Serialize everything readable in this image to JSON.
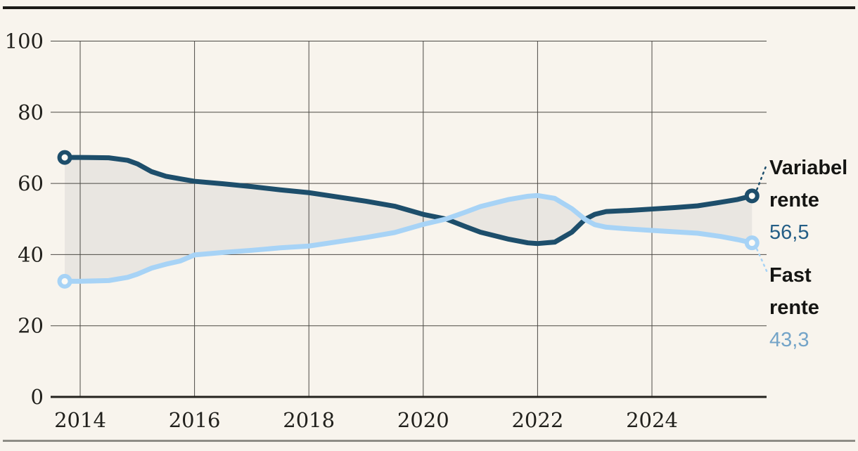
{
  "chart_data": {
    "type": "line",
    "title": "",
    "xlabel": "",
    "ylabel": "",
    "xlim": [
      2013.6,
      2025.95
    ],
    "ylim": [
      0,
      100
    ],
    "grid": true,
    "legend_position": "right",
    "x_ticks": [
      2014,
      2016,
      2018,
      2020,
      2022,
      2024
    ],
    "y_ticks": [
      0,
      20,
      40,
      60,
      80,
      100
    ],
    "fill_between_color": "#e9e6e1",
    "x": [
      2013.73,
      2014.0,
      2014.5,
      2014.83,
      2015.0,
      2015.25,
      2015.5,
      2015.75,
      2016.0,
      2016.5,
      2017.0,
      2017.5,
      2018.0,
      2018.5,
      2019.0,
      2019.5,
      2020.0,
      2020.4,
      2020.75,
      2021.0,
      2021.5,
      2021.83,
      2022.0,
      2022.3,
      2022.6,
      2022.83,
      2023.0,
      2023.2,
      2023.6,
      2024.0,
      2024.4,
      2024.8,
      2025.2,
      2025.5,
      2025.75
    ],
    "series": [
      {
        "name": "Variabel rente",
        "label_lines": [
          "Variabel",
          "rente"
        ],
        "end_label": "56,5",
        "color": "#1d4e6b",
        "value_color": "#245e86",
        "values": [
          67.3,
          67.3,
          67.2,
          66.5,
          65.5,
          63.3,
          62.0,
          61.3,
          60.6,
          59.9,
          59.1,
          58.2,
          57.4,
          56.2,
          55.0,
          53.6,
          51.3,
          50.0,
          47.8,
          46.3,
          44.3,
          43.3,
          43.1,
          43.5,
          46.3,
          49.9,
          51.3,
          52.1,
          52.4,
          52.8,
          53.2,
          53.7,
          54.7,
          55.5,
          56.5
        ]
      },
      {
        "name": "Fast rente",
        "label_lines": [
          "Fast",
          "rente"
        ],
        "end_label": "43,3",
        "color": "#a7d3f6",
        "value_color": "#74a4c8",
        "values": [
          32.5,
          32.5,
          32.7,
          33.6,
          34.5,
          36.2,
          37.3,
          38.2,
          39.9,
          40.6,
          41.2,
          41.9,
          42.4,
          43.6,
          44.8,
          46.2,
          48.5,
          50.0,
          52.0,
          53.5,
          55.5,
          56.4,
          56.6,
          55.8,
          52.9,
          49.9,
          48.4,
          47.7,
          47.2,
          46.8,
          46.4,
          46.0,
          45.1,
          44.2,
          43.3
        ]
      }
    ]
  },
  "colors": {
    "background": "#f8f4ed",
    "gridline": "#4c4a45",
    "axis_line": "#24221d",
    "tick_text": "#21201c",
    "legend_name_text": "#151513",
    "top_rule": "#1c1b18",
    "bottom_rule": "#8e8d86"
  }
}
